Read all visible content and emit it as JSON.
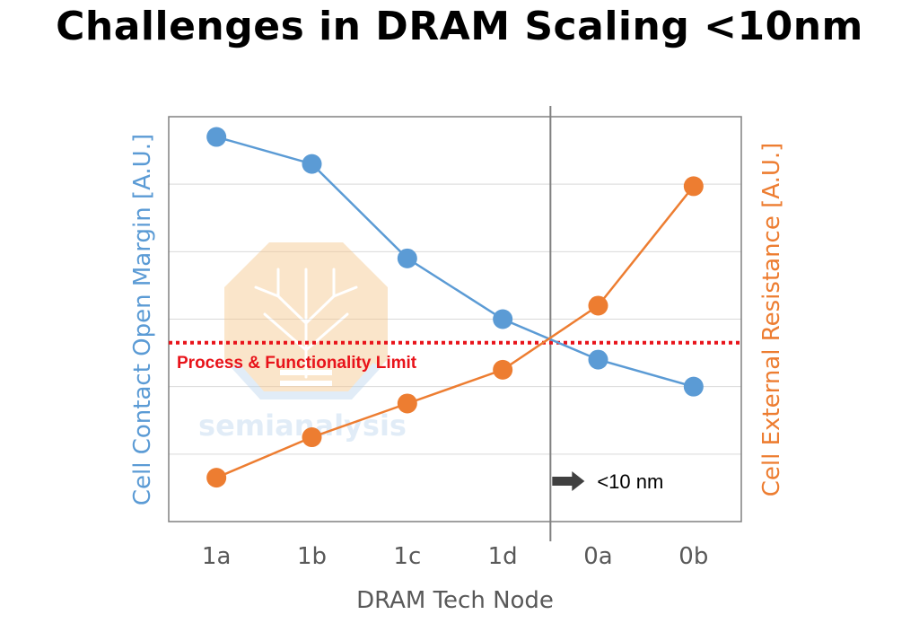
{
  "title": "Challenges in DRAM Scaling <10nm",
  "watermark": {
    "text": "semianalysis",
    "kind": "logo"
  },
  "colors": {
    "blue": "#5B9BD5",
    "orange": "#ED7D31",
    "limit_red": "#E8131A",
    "frame": "#808080",
    "grid": "#D9D9D9"
  },
  "chart_data": {
    "type": "line",
    "categories": [
      "1a",
      "1b",
      "1c",
      "1d",
      "0a",
      "0b"
    ],
    "xlabel": "DRAM Tech Node",
    "ylabel_left": "Cell Contact Open Margin [A.U.]",
    "ylabel_right": "Cell  External Resistance [A.U.]",
    "ylim": [
      0,
      6
    ],
    "grid": true,
    "series": [
      {
        "axis": "left",
        "color": "#5B9BD5",
        "values": [
          5.7,
          5.3,
          3.9,
          3.0,
          2.4,
          2.0
        ]
      },
      {
        "axis": "right",
        "color": "#ED7D31",
        "values": [
          0.65,
          1.25,
          1.75,
          2.25,
          3.2,
          4.97
        ]
      }
    ],
    "limit_line": {
      "label": "Process & Functionality Limit",
      "value": 2.65,
      "style": "dotted",
      "color": "#E8131A"
    },
    "divider": {
      "between": [
        "1d",
        "0a"
      ],
      "annotation": "<10 nm",
      "arrow": "right"
    }
  }
}
